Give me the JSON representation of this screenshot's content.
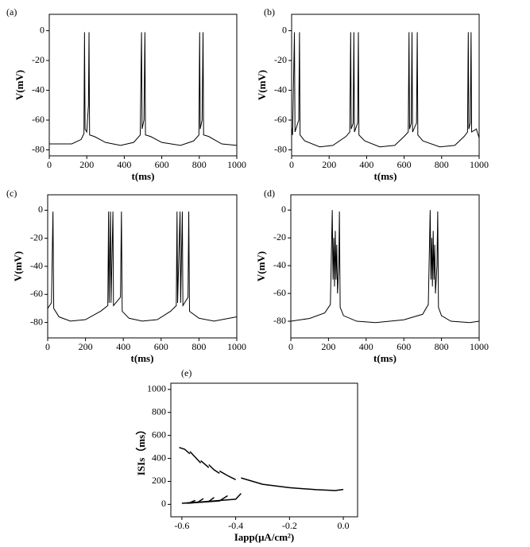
{
  "chart_data": [
    {
      "type": "line",
      "panel_label": "(a)",
      "xlabel": "t(ms)",
      "ylabel": "V(mV)",
      "color": "#000000",
      "xlim": [
        0,
        1000
      ],
      "xticks": [
        0,
        200,
        400,
        600,
        800,
        1000
      ],
      "ylim": [
        -84,
        11
      ],
      "yticks": [
        0,
        -20,
        -40,
        -60,
        -80
      ],
      "x": [
        0,
        120,
        170,
        185,
        188,
        191,
        200,
        209,
        212,
        215,
        240,
        300,
        380,
        450,
        485,
        492,
        495,
        505,
        510,
        513,
        540,
        600,
        700,
        770,
        798,
        802,
        805,
        815,
        820,
        823,
        850,
        920,
        1000
      ],
      "values": [
        -76,
        -76,
        -73,
        -69,
        -1,
        -66,
        -68,
        -50,
        -1,
        -70,
        -71,
        -75,
        -77,
        -75,
        -70,
        -1,
        -66,
        -60,
        -1,
        -70,
        -71,
        -75,
        -77,
        -74,
        -70,
        -1,
        -66,
        -60,
        -1,
        -70,
        -71,
        -76,
        -77
      ]
    },
    {
      "type": "line",
      "panel_label": "(b)",
      "xlabel": "t(ms)",
      "ylabel": "V(mV)",
      "color": "#000000",
      "xlim": [
        0,
        1000
      ],
      "xticks": [
        0,
        200,
        400,
        600,
        800,
        1000
      ],
      "ylim": [
        -84,
        11
      ],
      "yticks": [
        0,
        -20,
        -40,
        -60,
        -80
      ],
      "x": [
        0,
        5,
        15,
        18,
        38,
        42,
        45,
        70,
        150,
        220,
        290,
        310,
        315,
        318,
        328,
        332,
        335,
        352,
        356,
        359,
        390,
        470,
        550,
        600,
        622,
        626,
        629,
        638,
        642,
        645,
        666,
        670,
        673,
        700,
        790,
        870,
        920,
        938,
        942,
        945,
        953,
        957,
        960,
        985,
        1000
      ],
      "values": [
        -65,
        -70,
        -1,
        -68,
        -60,
        -1,
        -70,
        -74,
        -78,
        -77,
        -71,
        -68,
        -1,
        -66,
        -62,
        -1,
        -68,
        -62,
        -1,
        -70,
        -74,
        -78,
        -77,
        -71,
        -68,
        -1,
        -66,
        -62,
        -1,
        -68,
        -62,
        -1,
        -70,
        -74,
        -78,
        -77,
        -71,
        -68,
        -1,
        -66,
        -62,
        -1,
        -68,
        -66,
        -72
      ]
    },
    {
      "type": "line",
      "panel_label": "(c)",
      "xlabel": "t(ms)",
      "ylabel": "V(mV)",
      "color": "#000000",
      "xlim": [
        0,
        1000
      ],
      "xticks": [
        0,
        200,
        400,
        600,
        800,
        1000
      ],
      "ylim": [
        -91,
        11
      ],
      "yticks": [
        0,
        -20,
        -40,
        -60,
        -80
      ],
      "x": [
        0,
        20,
        28,
        32,
        60,
        120,
        200,
        280,
        318,
        322,
        325,
        332,
        335,
        345,
        348,
        385,
        390,
        394,
        430,
        500,
        580,
        650,
        680,
        684,
        687,
        700,
        703,
        712,
        715,
        742,
        746,
        750,
        800,
        880,
        1000
      ],
      "values": [
        -70,
        -66,
        -1,
        -70,
        -76,
        -79,
        -78,
        -72,
        -68,
        -1,
        -66,
        -1,
        -66,
        -1,
        -68,
        -62,
        -1,
        -72,
        -77,
        -79,
        -78,
        -72,
        -68,
        -1,
        -66,
        -1,
        -66,
        -1,
        -68,
        -62,
        -1,
        -72,
        -77,
        -79,
        -76
      ]
    },
    {
      "type": "line",
      "panel_label": "(d)",
      "xlabel": "t(ms)",
      "ylabel": "V(mV)",
      "color": "#000000",
      "xlim": [
        0,
        1000
      ],
      "xticks": [
        0,
        200,
        400,
        600,
        800,
        1000
      ],
      "ylim": [
        -92,
        11
      ],
      "yticks": [
        0,
        -20,
        -40,
        -60,
        -80
      ],
      "x": [
        0,
        100,
        180,
        210,
        220,
        224,
        228,
        232,
        236,
        240,
        244,
        248,
        255,
        258,
        262,
        280,
        350,
        450,
        600,
        700,
        730,
        740,
        744,
        748,
        752,
        756,
        760,
        764,
        768,
        776,
        780,
        784,
        800,
        850,
        950,
        1000
      ],
      "values": [
        -80,
        -78,
        -74,
        -68,
        0,
        -50,
        -20,
        -55,
        -15,
        -50,
        -25,
        -60,
        -40,
        -1,
        -70,
        -76,
        -80,
        -81,
        -79,
        -75,
        -68,
        0,
        -50,
        -20,
        -55,
        -15,
        -50,
        -25,
        -60,
        -40,
        -1,
        -70,
        -76,
        -80,
        -81,
        -80
      ]
    },
    {
      "type": "line",
      "panel_label": "(e)",
      "xlabel": "Iapp(μA/cm²)",
      "ylabel": "ISIs（ms）",
      "xlim": [
        -0.641,
        0.053
      ],
      "xticks": [
        -0.6,
        -0.4,
        -0.2,
        {
          "value": 0,
          "label": "0.0"
        }
      ],
      "ylim": [
        -108,
        1054
      ],
      "yticks": [
        0,
        200,
        400,
        600,
        800,
        1000
      ],
      "series": [
        {
          "color": "#000000",
          "x": [
            -0.61,
            -0.59,
            -0.57
          ],
          "values": [
            495,
            480,
            440
          ]
        },
        {
          "color": "#000000",
          "x": [
            -0.57,
            -0.55,
            -0.53
          ],
          "values": [
            460,
            410,
            360
          ]
        },
        {
          "color": "#000000",
          "x": [
            -0.53,
            -0.51,
            -0.5
          ],
          "values": [
            380,
            340,
            320
          ]
        },
        {
          "color": "#000000",
          "x": [
            -0.5,
            -0.48,
            -0.46
          ],
          "values": [
            345,
            300,
            270
          ]
        },
        {
          "color": "#000000",
          "x": [
            -0.46,
            -0.43,
            -0.4
          ],
          "values": [
            290,
            250,
            215
          ]
        },
        {
          "color": "#000000",
          "x": [
            -0.38,
            -0.3,
            -0.2,
            -0.1,
            -0.03,
            0.0
          ],
          "values": [
            230,
            175,
            145,
            128,
            120,
            130
          ]
        },
        {
          "color": "#000000",
          "x": [
            -0.6,
            -0.57,
            -0.55
          ],
          "values": [
            10,
            15,
            35
          ]
        },
        {
          "color": "#000000",
          "x": [
            -0.59,
            -0.54,
            -0.52
          ],
          "values": [
            10,
            20,
            50
          ]
        },
        {
          "color": "#000000",
          "x": [
            -0.58,
            -0.5,
            -0.48
          ],
          "values": [
            10,
            25,
            60
          ]
        },
        {
          "color": "#000000",
          "x": [
            -0.57,
            -0.46,
            -0.43
          ],
          "values": [
            12,
            30,
            75
          ]
        },
        {
          "color": "#000000",
          "x": [
            -0.56,
            -0.4,
            -0.38
          ],
          "values": [
            15,
            45,
            95
          ]
        }
      ]
    }
  ]
}
